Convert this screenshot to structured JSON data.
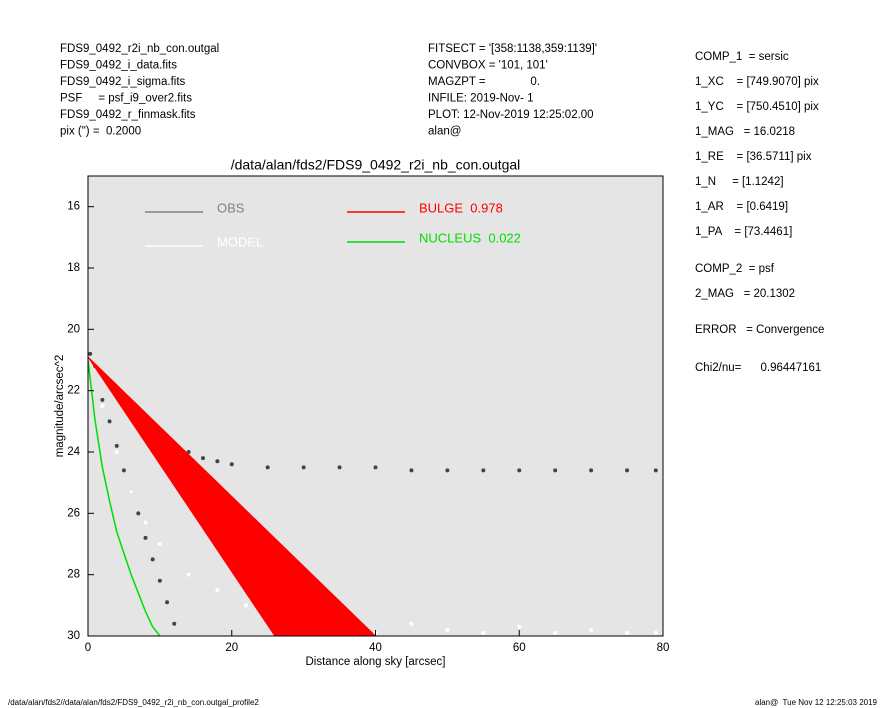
{
  "header_left": [
    "FDS9_0492_r2i_nb_con.outgal",
    "FDS9_0492_i_data.fits",
    "FDS9_0492_i_sigma.fits",
    "PSF     = psf_i9_over2.fits",
    "FDS9_0492_r_finmask.fits",
    "pix (\") =  0.2000"
  ],
  "header_center": [
    "FITSECT = '[358:1138,359:1139]'",
    "CONVBOX = '101, 101'",
    "MAGZPT =              0.",
    "INFILE: 2019-Nov- 1",
    "PLOT: 12-Nov-2019 12:25:02.00",
    "alan@"
  ],
  "components": [
    "COMP_1  = sersic",
    "1_XC    = [749.9070] pix",
    "1_YC    = [750.4510] pix",
    "1_MAG   = 16.0218",
    "1_RE    = [36.5711] pix",
    "1_N     = [1.1242]",
    "1_AR    = [0.6419]",
    "1_PA    = [73.4461]",
    "COMP_2  = psf",
    "2_MAG   = 20.1302",
    "ERROR   = Convergence",
    "Chi2/nu=      0.96447161"
  ],
  "footer_left": "/data/alan/fds2//data/alan/fds2/FDS9_0492_r2i_nb_con.outgal_profile2",
  "footer_right": "alan@  Tue Nov 12 12:25:03 2019",
  "chart_data": {
    "type": "scatter",
    "title": "/data/alan/fds2/FDS9_0492_r2i_nb_con.outgal",
    "x_label": "Distance along sky [arcsec]",
    "y_label": "magnitude/arcsec^2",
    "xlim": [
      0,
      80
    ],
    "ylim": [
      15,
      30
    ],
    "y_reversed": true,
    "xticks": [
      0,
      20,
      40,
      60,
      80
    ],
    "yticks": [
      16,
      18,
      20,
      22,
      24,
      26,
      28,
      30
    ],
    "background": "#e5e5e5",
    "series": [
      {
        "name": "OBS",
        "color": "#808080",
        "point_color": "#444444",
        "kind": "scatter",
        "x": [
          0.3,
          1,
          2,
          3,
          4,
          5,
          6,
          7,
          8,
          9,
          10,
          12,
          14,
          16,
          18,
          20,
          25,
          30,
          35,
          40,
          45,
          50,
          55,
          60,
          65,
          70,
          75,
          79,
          2,
          3,
          4,
          5,
          6,
          7,
          8,
          9,
          10,
          11,
          12
        ],
        "values": [
          20.8,
          21.2,
          21.5,
          21.8,
          22.1,
          22.4,
          22.6,
          22.9,
          23.1,
          23.3,
          23.5,
          23.8,
          24.0,
          24.2,
          24.3,
          24.4,
          24.5,
          24.5,
          24.5,
          24.5,
          24.6,
          24.6,
          24.6,
          24.6,
          24.6,
          24.6,
          24.6,
          24.6,
          22.3,
          23.0,
          23.8,
          24.6,
          25.3,
          26.0,
          26.8,
          27.5,
          28.2,
          28.9,
          29.6
        ]
      },
      {
        "name": "MODEL",
        "color": "#ffffff",
        "point_color": "#ffffff",
        "kind": "scatter",
        "x": [
          2,
          4,
          6,
          8,
          10,
          14,
          18,
          22,
          26,
          30,
          35,
          40,
          45,
          50,
          55,
          60,
          65,
          70,
          75,
          79
        ],
        "values": [
          22.5,
          24,
          25.3,
          26.3,
          27,
          28,
          28.5,
          29,
          29.5,
          29.7,
          29.8,
          29.9,
          29.6,
          29.8,
          29.9,
          29.7,
          29.9,
          29.8,
          29.9,
          29.9
        ]
      },
      {
        "name": "BULGE  0.978",
        "color": "#ff0000",
        "kind": "area",
        "x": [
          0,
          26,
          40
        ],
        "values": [
          20.9,
          30,
          30
        ]
      },
      {
        "name": "NUCLEUS  0.022",
        "color": "#00dd00",
        "kind": "line",
        "x": [
          0,
          0.5,
          1,
          2,
          3,
          4,
          5,
          6,
          7,
          8,
          9,
          10
        ],
        "values": [
          21,
          22,
          23,
          24.5,
          25.6,
          26.6,
          27.3,
          28,
          28.6,
          29.2,
          29.7,
          30
        ]
      }
    ]
  }
}
